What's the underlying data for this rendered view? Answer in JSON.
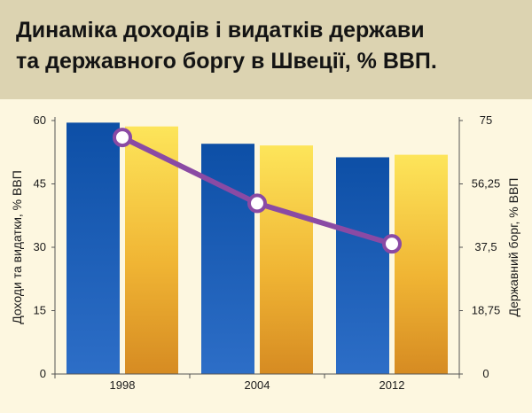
{
  "title_lines": [
    "Динаміка доходів і видатків держави",
    "та державного боргу в Швеції, % ВВП."
  ],
  "chart_data": {
    "type": "bar",
    "title": "Динаміка доходів і видатків держави та державного боргу в Швеції, % ВВП.",
    "categories": [
      "1998",
      "2004",
      "2012"
    ],
    "ylabel": "Доходи та видатки, % ВВП",
    "y2label": "Державний борг, % ВВП",
    "ylim": [
      0,
      60
    ],
    "y2lim": [
      0,
      75
    ],
    "yticks": [
      "0",
      "15",
      "30",
      "45",
      "60"
    ],
    "y2ticks": [
      "0",
      "18,75",
      "37,5",
      "56,25",
      "75"
    ],
    "series": [
      {
        "kind": "bar",
        "axis": "left",
        "values": [
          59.5,
          54.5,
          51.3
        ],
        "color": "#1f5bb0"
      },
      {
        "kind": "bar",
        "axis": "left",
        "values": [
          58.6,
          54.1,
          51.9
        ],
        "color": "#f2c038"
      },
      {
        "kind": "line",
        "axis": "right",
        "values": [
          70,
          50.5,
          38.5
        ],
        "color": "#8a4aa4"
      }
    ],
    "grid": false,
    "legend": "none"
  }
}
